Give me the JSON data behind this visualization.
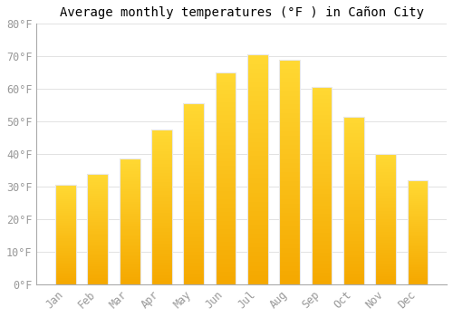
{
  "title": "Average monthly temperatures (°F ) in Cañon City",
  "months": [
    "Jan",
    "Feb",
    "Mar",
    "Apr",
    "May",
    "Jun",
    "Jul",
    "Aug",
    "Sep",
    "Oct",
    "Nov",
    "Dec"
  ],
  "values": [
    30.5,
    34.0,
    38.5,
    47.5,
    55.5,
    65.0,
    70.5,
    69.0,
    60.5,
    51.5,
    40.0,
    32.0
  ],
  "bar_color_top": "#FFC700",
  "bar_color_bottom": "#F5A800",
  "bar_edge_color": "#E8E8E8",
  "background_color": "#FFFFFF",
  "grid_color": "#dddddd",
  "ylim": [
    0,
    80
  ],
  "yticks": [
    0,
    10,
    20,
    30,
    40,
    50,
    60,
    70,
    80
  ],
  "title_fontsize": 10,
  "tick_fontsize": 8.5,
  "tick_label_color": "#999999",
  "font_family": "monospace",
  "bar_width": 0.65
}
